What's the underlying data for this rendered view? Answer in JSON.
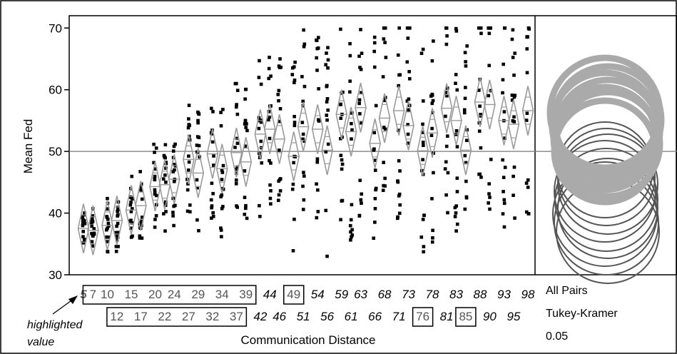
{
  "chart_data": {
    "type": "scatter",
    "title": "",
    "xlabel": "Communication Distance",
    "ylabel": "Mean Fed",
    "ylim": [
      30,
      72
    ],
    "yticks": [
      30,
      40,
      50,
      60,
      70
    ],
    "grand_mean": 50,
    "x_values": [
      5,
      7,
      10,
      12,
      15,
      17,
      20,
      22,
      24,
      27,
      29,
      32,
      34,
      37,
      39,
      42,
      44,
      46,
      49,
      51,
      54,
      56,
      59,
      61,
      63,
      66,
      68,
      71,
      73,
      76,
      78,
      81,
      83,
      85,
      88,
      90,
      93,
      95,
      98
    ],
    "group_means": [
      37.5,
      37.2,
      38.0,
      38.8,
      40.5,
      41.2,
      44.3,
      44.6,
      45.5,
      48.7,
      46.5,
      49.6,
      47.2,
      49.8,
      48.3,
      52.8,
      53.6,
      52.0,
      49.2,
      54.0,
      53.6,
      50.2,
      56.0,
      53.2,
      57.1,
      51.3,
      55.4,
      56.6,
      54.2,
      50.1,
      53.0,
      57.0,
      55.0,
      50.2,
      58.0,
      57.6,
      55.0,
      54.4,
      56.6
    ],
    "diamond_half_height": 4.0,
    "point_range": [
      33,
      70
    ],
    "row1_labels": [
      "5",
      "7",
      "10",
      "15",
      "20",
      "24",
      "29",
      "34",
      "39",
      "44",
      "49",
      "54",
      "59",
      "63",
      "68",
      "73",
      "78",
      "83",
      "88",
      "93",
      "98"
    ],
    "row2_labels": [
      "12",
      "17",
      "22",
      "27",
      "32",
      "37",
      "42",
      "46",
      "51",
      "56",
      "61",
      "66",
      "71",
      "76",
      "81",
      "85",
      "90",
      "95"
    ],
    "highlighted_value": "5",
    "boxed_groups_row1": [
      [
        "7",
        "10",
        "15",
        "20",
        "24",
        "29",
        "34",
        "39"
      ],
      [
        "49"
      ]
    ],
    "boxed_groups_row2": [
      [
        "12",
        "17",
        "22",
        "27",
        "32",
        "37"
      ],
      [
        "76"
      ],
      [
        "85"
      ]
    ],
    "annotation": {
      "line1": "highlighted",
      "line2": "value"
    },
    "comparison": {
      "title": "All Pairs",
      "method": "Tukey-Kramer",
      "alpha": "0.05"
    },
    "circle_colors": {
      "grey": "#aaaaaa",
      "dark": "#555555"
    }
  }
}
